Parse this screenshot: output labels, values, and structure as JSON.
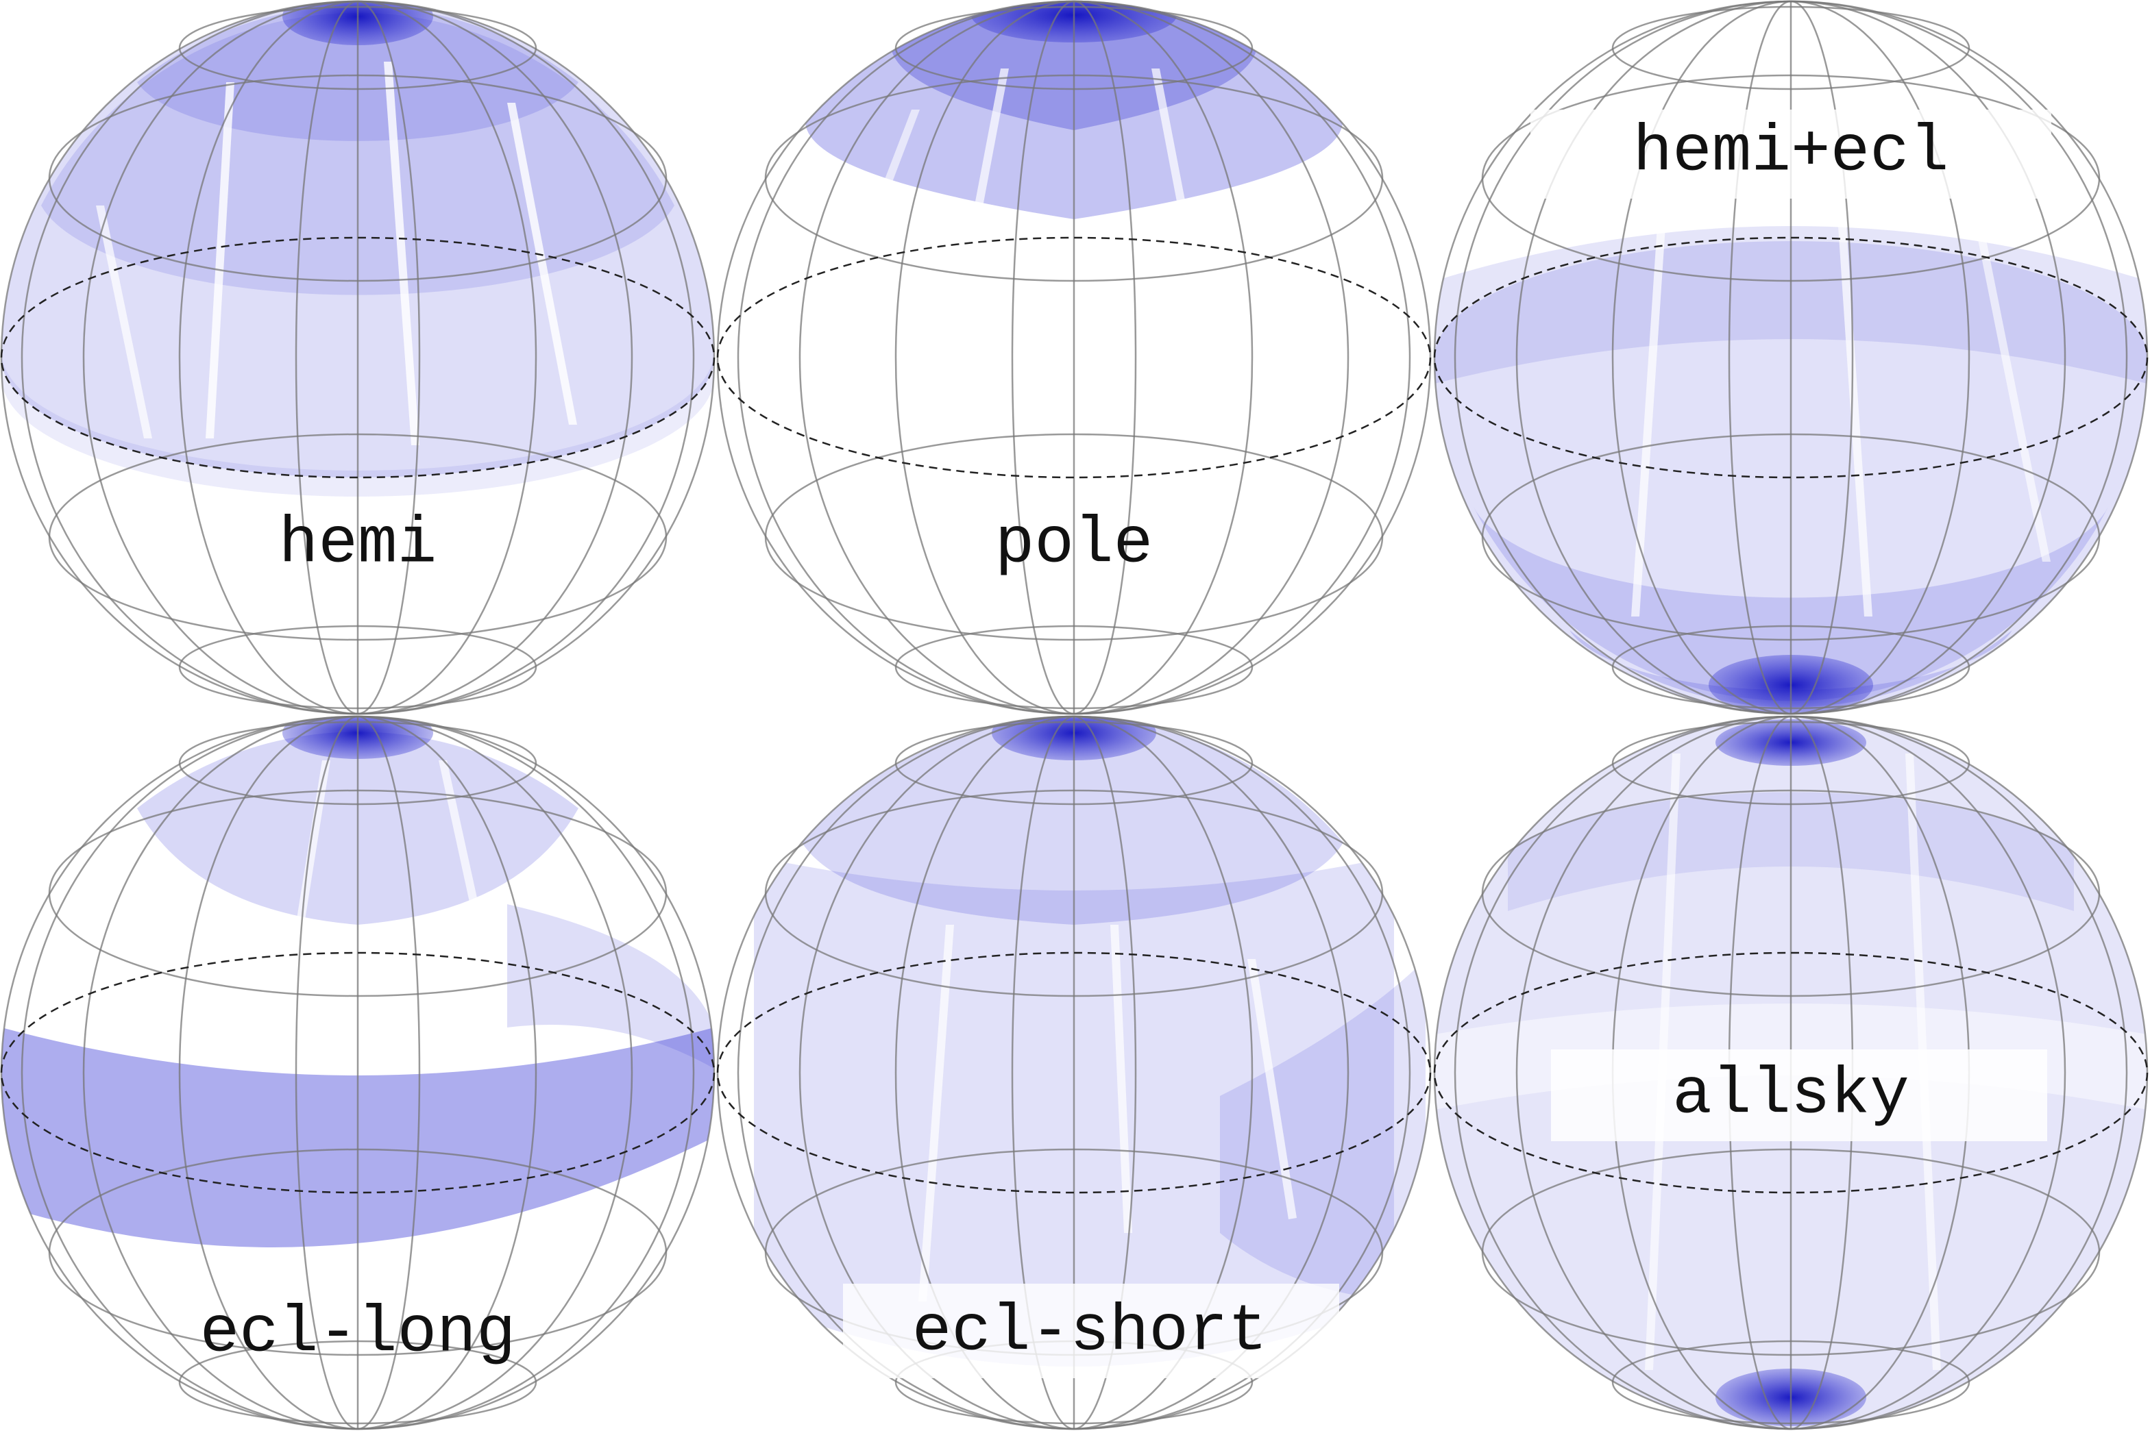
{
  "panels": [
    {
      "label": "hemi"
    },
    {
      "label": "pole"
    },
    {
      "label": "hemi+ecl"
    },
    {
      "label": "ecl-long"
    },
    {
      "label": "ecl-short"
    },
    {
      "label": "allsky"
    }
  ],
  "colors": {
    "coverage": "#3b3bd6",
    "pole_cap": "#1a1acc",
    "grid": "#555555",
    "equator": "#222222",
    "label_box": "#ffffff"
  }
}
